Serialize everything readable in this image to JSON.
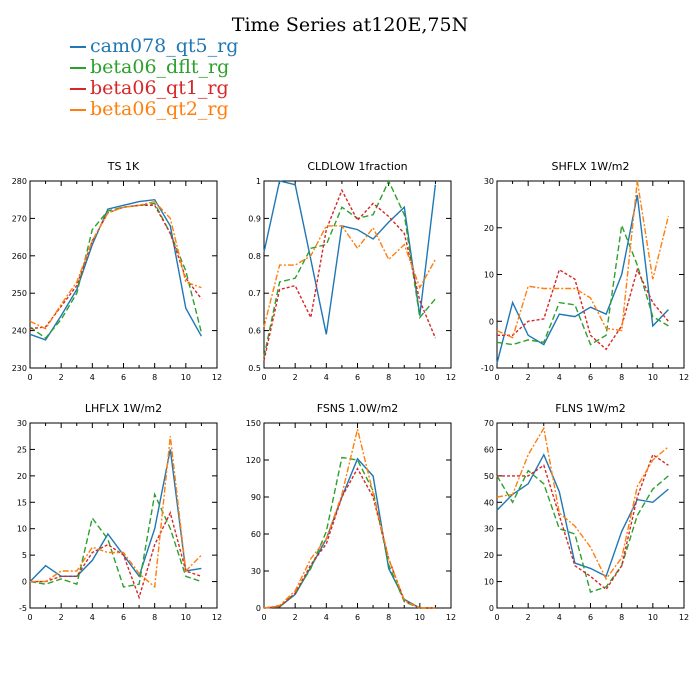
{
  "title": "Time Series at120E,75N",
  "legend": [
    {
      "name": "cam078_qt5_rg",
      "color": "#1f77b4"
    },
    {
      "name": "beta06_dflt_rg",
      "color": "#2ca02c"
    },
    {
      "name": "beta06_qt1_rg",
      "color": "#d62728"
    },
    {
      "name": "beta06_qt2_rg",
      "color": "#ff7f0e"
    }
  ],
  "chart_data": [
    {
      "type": "line",
      "title": "TS   1K",
      "xlim": [
        0,
        12
      ],
      "xticks": [
        0,
        2,
        4,
        6,
        8,
        10,
        12
      ],
      "ylim": [
        230,
        280
      ],
      "yticks": [
        230,
        240,
        250,
        260,
        270,
        280
      ],
      "x": [
        0,
        1,
        2,
        3,
        4,
        5,
        6,
        7,
        8,
        9,
        10,
        11
      ],
      "series": [
        {
          "name": "cam078_qt5_rg",
          "values": [
            239,
            237.5,
            244,
            251,
            263,
            272.5,
            273.5,
            274.5,
            275,
            268,
            246,
            238.5
          ]
        },
        {
          "name": "beta06_dflt_rg",
          "values": [
            241,
            238,
            243,
            250,
            267,
            272,
            273,
            273.5,
            274,
            266,
            256,
            239.5
          ]
        },
        {
          "name": "beta06_qt1_rg",
          "values": [
            240.5,
            241,
            246.5,
            252,
            264,
            271.5,
            273,
            273.5,
            273.5,
            266,
            254,
            248.5
          ]
        },
        {
          "name": "beta06_qt2_rg",
          "values": [
            242.5,
            240.5,
            247,
            253,
            264,
            271.5,
            273,
            273.5,
            274.5,
            270,
            253,
            251.5
          ]
        }
      ]
    },
    {
      "type": "line",
      "title": "CLDLOW   1fraction",
      "xlim": [
        0,
        12
      ],
      "xticks": [
        0,
        2,
        4,
        6,
        8,
        10,
        12
      ],
      "ylim": [
        0.5,
        1.0
      ],
      "yticks": [
        0.5,
        0.6,
        0.7,
        0.8,
        0.9,
        1.0
      ],
      "x": [
        0,
        1,
        2,
        3,
        4,
        5,
        6,
        7,
        8,
        9,
        10,
        11
      ],
      "series": [
        {
          "name": "cam078_qt5_rg",
          "values": [
            0.81,
            1.0,
            0.99,
            0.79,
            0.59,
            0.88,
            0.87,
            0.845,
            0.89,
            0.93,
            0.64,
            0.99
          ]
        },
        {
          "name": "beta06_dflt_rg",
          "values": [
            0.53,
            0.73,
            0.74,
            0.82,
            0.83,
            0.93,
            0.9,
            0.91,
            1.0,
            0.91,
            0.635,
            0.685
          ]
        },
        {
          "name": "beta06_qt1_rg",
          "values": [
            0.52,
            0.71,
            0.72,
            0.635,
            0.87,
            0.975,
            0.895,
            0.94,
            0.905,
            0.86,
            0.68,
            0.58
          ]
        },
        {
          "name": "beta06_qt2_rg",
          "values": [
            0.61,
            0.775,
            0.775,
            0.8,
            0.88,
            0.88,
            0.82,
            0.875,
            0.79,
            0.83,
            0.715,
            0.79
          ]
        }
      ]
    },
    {
      "type": "line",
      "title": "SHFLX   1W/m2",
      "xlim": [
        0,
        12
      ],
      "xticks": [
        0,
        2,
        4,
        6,
        8,
        10,
        12
      ],
      "ylim": [
        -10,
        30
      ],
      "yticks": [
        -10,
        0,
        10,
        20,
        30
      ],
      "x": [
        0,
        1,
        2,
        3,
        4,
        5,
        6,
        7,
        8,
        9,
        10,
        11
      ],
      "series": [
        {
          "name": "cam078_qt5_rg",
          "values": [
            -9,
            4,
            -3,
            -5,
            1.5,
            1,
            3,
            1.5,
            10,
            27,
            -1,
            2.5
          ]
        },
        {
          "name": "beta06_dflt_rg",
          "values": [
            -4.5,
            -5,
            -4,
            -4.5,
            4,
            3.5,
            -5,
            -3,
            20.5,
            12,
            1,
            -1
          ]
        },
        {
          "name": "beta06_qt1_rg",
          "values": [
            -3,
            -3,
            0,
            0.5,
            11,
            9,
            -3,
            -6,
            -1,
            11,
            4,
            0
          ]
        },
        {
          "name": "beta06_qt2_rg",
          "values": [
            -2,
            -3.5,
            7.5,
            7,
            7,
            7,
            5,
            -1.5,
            -2,
            30,
            9,
            22.5
          ]
        }
      ]
    },
    {
      "type": "line",
      "title": "LHFLX   1W/m2",
      "xlim": [
        0,
        12
      ],
      "xticks": [
        0,
        2,
        4,
        6,
        8,
        10,
        12
      ],
      "ylim": [
        -5,
        30
      ],
      "yticks": [
        -5,
        0,
        5,
        10,
        15,
        20,
        25,
        30
      ],
      "x": [
        0,
        1,
        2,
        3,
        4,
        5,
        6,
        7,
        8,
        9,
        10,
        11
      ],
      "series": [
        {
          "name": "cam078_qt5_rg",
          "values": [
            0,
            3,
            1,
            1,
            4,
            9,
            5,
            1,
            10,
            25,
            2,
            2.5
          ]
        },
        {
          "name": "beta06_dflt_rg",
          "values": [
            0,
            -0.5,
            0.5,
            -0.5,
            12,
            8,
            -1,
            -0.5,
            16.5,
            10,
            1,
            0
          ]
        },
        {
          "name": "beta06_qt1_rg",
          "values": [
            0,
            0,
            1,
            1,
            5.5,
            7,
            5,
            -3,
            7,
            13,
            2,
            1
          ]
        },
        {
          "name": "beta06_qt2_rg",
          "values": [
            0,
            0,
            2,
            2,
            6.5,
            5.5,
            5.5,
            1.5,
            -1,
            27.5,
            2,
            5
          ]
        }
      ]
    },
    {
      "type": "line",
      "title": "FSNS   1.0W/m2",
      "xlim": [
        0,
        12
      ],
      "xticks": [
        0,
        2,
        4,
        6,
        8,
        10,
        12
      ],
      "ylim": [
        0,
        150
      ],
      "yticks": [
        0,
        30,
        60,
        90,
        120,
        150
      ],
      "x": [
        0,
        1,
        2,
        3,
        4,
        5,
        6,
        7,
        8,
        9,
        10,
        11
      ],
      "series": [
        {
          "name": "cam078_qt5_rg",
          "values": [
            0,
            1,
            11,
            33,
            56,
            90,
            121,
            107,
            32,
            7,
            0,
            0
          ]
        },
        {
          "name": "beta06_dflt_rg",
          "values": [
            0,
            1,
            12,
            32,
            62,
            122,
            120,
            95,
            35,
            5,
            0,
            0
          ]
        },
        {
          "name": "beta06_qt1_rg",
          "values": [
            0,
            1,
            12,
            35,
            52,
            90,
            113,
            90,
            40,
            6,
            0,
            0
          ]
        },
        {
          "name": "beta06_qt2_rg",
          "values": [
            0,
            2,
            14,
            40,
            56,
            92,
            145,
            93,
            40,
            6,
            0,
            0
          ]
        }
      ]
    },
    {
      "type": "line",
      "title": "FLNS   1W/m2",
      "xlim": [
        0,
        12
      ],
      "xticks": [
        0,
        2,
        4,
        6,
        8,
        10,
        12
      ],
      "ylim": [
        0,
        70
      ],
      "yticks": [
        0,
        10,
        20,
        30,
        40,
        50,
        60,
        70
      ],
      "x": [
        0,
        1,
        2,
        3,
        4,
        5,
        6,
        7,
        8,
        9,
        10,
        11
      ],
      "series": [
        {
          "name": "cam078_qt5_rg",
          "values": [
            37,
            43,
            47,
            58,
            44,
            17,
            15,
            12,
            29,
            41,
            40,
            45
          ]
        },
        {
          "name": "beta06_dflt_rg",
          "values": [
            50,
            40,
            52,
            47,
            30,
            28,
            6,
            8,
            16,
            35,
            45,
            50
          ]
        },
        {
          "name": "beta06_qt1_rg",
          "values": [
            50,
            50,
            50,
            54,
            35,
            16,
            12,
            7,
            16,
            42,
            58,
            54
          ]
        },
        {
          "name": "beta06_qt2_rg",
          "values": [
            42,
            43,
            58,
            68,
            36,
            31,
            23,
            11,
            19,
            46,
            56,
            61
          ]
        }
      ]
    }
  ]
}
